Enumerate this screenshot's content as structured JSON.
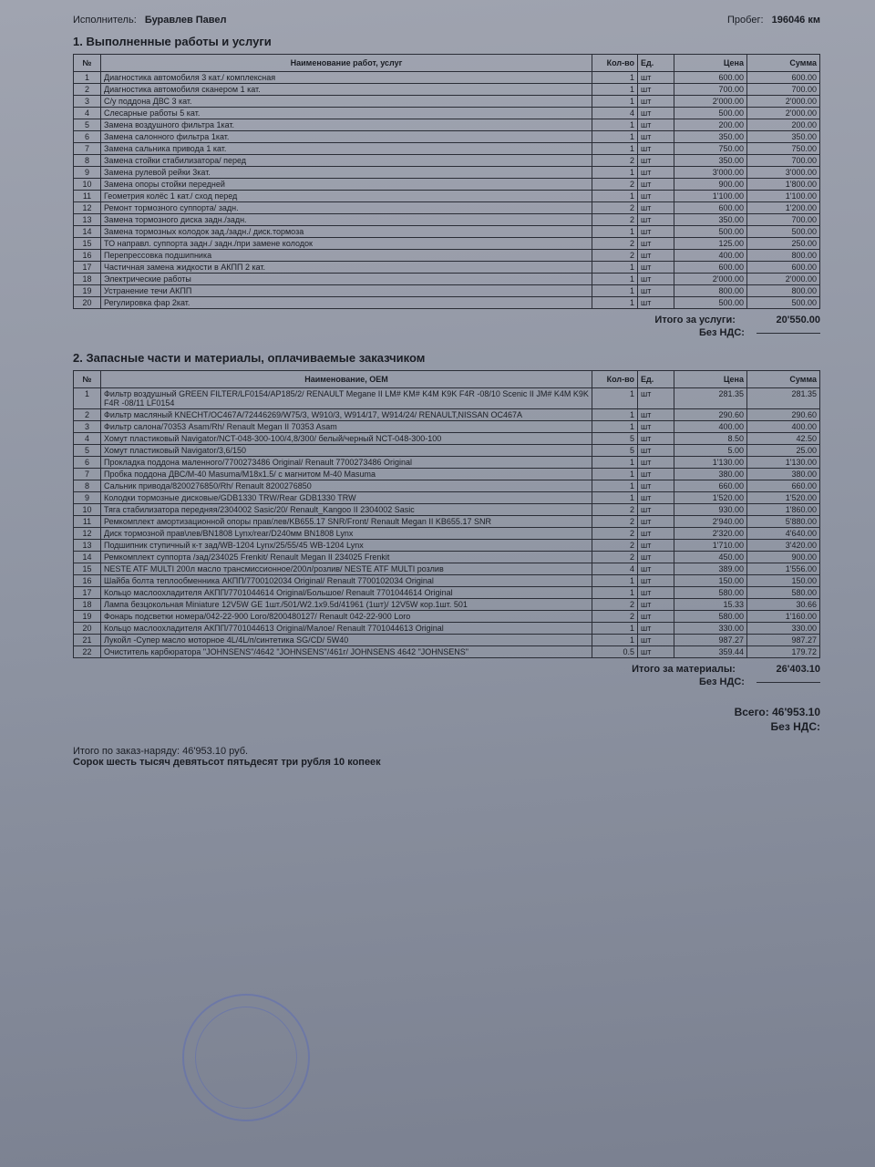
{
  "header": {
    "executor_label": "Исполнитель:",
    "executor_value": "Буравлев Павел",
    "mileage_label": "Пробег:",
    "mileage_value": "196046 км"
  },
  "section1": {
    "title": "1. Выполненные работы и услуги",
    "columns": {
      "num": "№",
      "name": "Наименование работ, услуг",
      "qty": "Кол-во",
      "unit": "Ед.",
      "price": "Цена",
      "sum": "Сумма"
    },
    "rows": [
      {
        "n": "1",
        "name": "Диагностика автомобиля 3 кат./ комплексная",
        "q": "1",
        "u": "шт",
        "p": "600.00",
        "s": "600.00"
      },
      {
        "n": "2",
        "name": "Диагностика автомобиля сканером 1 кат.",
        "q": "1",
        "u": "шт",
        "p": "700.00",
        "s": "700.00"
      },
      {
        "n": "3",
        "name": "С/у поддона ДВС 3 кат.",
        "q": "1",
        "u": "шт",
        "p": "2'000.00",
        "s": "2'000.00"
      },
      {
        "n": "4",
        "name": "Слесарные работы 5 кат.",
        "q": "4",
        "u": "шт",
        "p": "500.00",
        "s": "2'000.00"
      },
      {
        "n": "5",
        "name": "Замена воздушного фильтра 1кат.",
        "q": "1",
        "u": "шт",
        "p": "200.00",
        "s": "200.00"
      },
      {
        "n": "6",
        "name": "Замена салонного фильтра 1кат.",
        "q": "1",
        "u": "шт",
        "p": "350.00",
        "s": "350.00"
      },
      {
        "n": "7",
        "name": "Замена сальника привода 1 кат.",
        "q": "1",
        "u": "шт",
        "p": "750.00",
        "s": "750.00"
      },
      {
        "n": "8",
        "name": "Замена стойки стабилизатора/ перед",
        "q": "2",
        "u": "шт",
        "p": "350.00",
        "s": "700.00"
      },
      {
        "n": "9",
        "name": "Замена рулевой рейки 3кат.",
        "q": "1",
        "u": "шт",
        "p": "3'000.00",
        "s": "3'000.00"
      },
      {
        "n": "10",
        "name": "Замена опоры стойки передней",
        "q": "2",
        "u": "шт",
        "p": "900.00",
        "s": "1'800.00"
      },
      {
        "n": "11",
        "name": "Геометрия колёс 1 кат./ сход перед",
        "q": "1",
        "u": "шт",
        "p": "1'100.00",
        "s": "1'100.00"
      },
      {
        "n": "12",
        "name": "Ремонт тормозного суппорта/ задн.",
        "q": "2",
        "u": "шт",
        "p": "600.00",
        "s": "1'200.00"
      },
      {
        "n": "13",
        "name": "Замена тормозного диска задн./задн.",
        "q": "2",
        "u": "шт",
        "p": "350.00",
        "s": "700.00"
      },
      {
        "n": "14",
        "name": "Замена тормозных колодок зад./задн./ диск.тормоза",
        "q": "1",
        "u": "шт",
        "p": "500.00",
        "s": "500.00"
      },
      {
        "n": "15",
        "name": "ТО направл. суппорта задн./ задн./при замене колодок",
        "q": "2",
        "u": "шт",
        "p": "125.00",
        "s": "250.00"
      },
      {
        "n": "16",
        "name": "Перепрессовка подшипника",
        "q": "2",
        "u": "шт",
        "p": "400.00",
        "s": "800.00"
      },
      {
        "n": "17",
        "name": "Частичная замена жидкости в АКПП 2 кат.",
        "q": "1",
        "u": "шт",
        "p": "600.00",
        "s": "600.00"
      },
      {
        "n": "18",
        "name": "Электрические работы",
        "q": "1",
        "u": "шт",
        "p": "2'000.00",
        "s": "2'000.00"
      },
      {
        "n": "19",
        "name": "Устранение течи АКПП",
        "q": "1",
        "u": "шт",
        "p": "800.00",
        "s": "800.00"
      },
      {
        "n": "20",
        "name": "Регулировка фар 2кат.",
        "q": "1",
        "u": "шт",
        "p": "500.00",
        "s": "500.00"
      }
    ],
    "total_label": "Итого за услуги:",
    "total_value": "20'550.00",
    "vat_label": "Без НДС:"
  },
  "section2": {
    "title": "2. Запасные части и материалы, оплачиваемые заказчиком",
    "columns": {
      "num": "№",
      "name": "Наименование, OEM",
      "qty": "Кол-во",
      "unit": "Ед.",
      "price": "Цена",
      "sum": "Сумма"
    },
    "rows": [
      {
        "n": "1",
        "name": "Фильтр воздушный GREEN FILTER/LF0154/AP185/2/ RENAULT Megane II LM# KM# K4M K9K F4R -08/10 Scenic II JM# K4M K9K F4R -08/11 LF0154",
        "q": "1",
        "u": "шт",
        "p": "281.35",
        "s": "281.35"
      },
      {
        "n": "2",
        "name": "Фильтр масляный KNECHT/OC467A/72446269/W75/3, W910/3, W914/17, W914/24/ RENAULT,NISSAN OC467A",
        "q": "1",
        "u": "шт",
        "p": "290.60",
        "s": "290.60"
      },
      {
        "n": "3",
        "name": "Фильтр салона/70353 Asam/Rh/ Renault Megan II 70353 Asam",
        "q": "1",
        "u": "шт",
        "p": "400.00",
        "s": "400.00"
      },
      {
        "n": "4",
        "name": "Хомут пластиковый Navigator/NCT-048-300-100/4,8/300/ белый/черный NCT-048-300-100",
        "q": "5",
        "u": "шт",
        "p": "8.50",
        "s": "42.50"
      },
      {
        "n": "5",
        "name": "Хомут пластиковый Navigator/3,6/150",
        "q": "5",
        "u": "шт",
        "p": "5.00",
        "s": "25.00"
      },
      {
        "n": "6",
        "name": "Прокладка поддона маленного/7700273486 Original/ Renault 7700273486 Original",
        "q": "1",
        "u": "шт",
        "p": "1'130.00",
        "s": "1'130.00"
      },
      {
        "n": "7",
        "name": "Пробка поддона ДВС/M-40 Masuma/M18x1.5/ с магнитом M-40 Masuma",
        "q": "1",
        "u": "шт",
        "p": "380.00",
        "s": "380.00"
      },
      {
        "n": "8",
        "name": "Сальник привода/8200276850/Rh/ Renault 8200276850",
        "q": "1",
        "u": "шт",
        "p": "660.00",
        "s": "660.00"
      },
      {
        "n": "9",
        "name": "Колодки тормозные дисковые/GDB1330 TRW/Rear GDB1330 TRW",
        "q": "1",
        "u": "шт",
        "p": "1'520.00",
        "s": "1'520.00"
      },
      {
        "n": "10",
        "name": "Тяга стабилизатора передняя/2304002 Sasic/20/ Renault_Kangoo II 2304002 Sasic",
        "q": "2",
        "u": "шт",
        "p": "930.00",
        "s": "1'860.00"
      },
      {
        "n": "11",
        "name": "Ремкомплект амортизационной опоры прав/лев/KB655.17 SNR/Front/ Renault Megan II KB655.17 SNR",
        "q": "2",
        "u": "шт",
        "p": "2'940.00",
        "s": "5'880.00"
      },
      {
        "n": "12",
        "name": "Диск тормозной прав\\лев/BN1808 Lynx/rear/D240мм BN1808 Lynx",
        "q": "2",
        "u": "шт",
        "p": "2'320.00",
        "s": "4'640.00"
      },
      {
        "n": "13",
        "name": "Подшипник ступичный к-т зад/WB-1204 Lynx/25/55/45 WB-1204 Lynx",
        "q": "2",
        "u": "шт",
        "p": "1'710.00",
        "s": "3'420.00"
      },
      {
        "n": "14",
        "name": "Ремкомплект суппорта /зад/234025 Frenkit/ Renault Megan II 234025 Frenkit",
        "q": "2",
        "u": "шт",
        "p": "450.00",
        "s": "900.00"
      },
      {
        "n": "15",
        "name": "NESTE ATF MULTI 200л масло трансмиссионное/200л/розлив/ NESTE ATF MULTI розлив",
        "q": "4",
        "u": "шт",
        "p": "389.00",
        "s": "1'556.00"
      },
      {
        "n": "16",
        "name": "Шайба болта теплообменника АКПП/7700102034 Original/ Renault 7700102034 Original",
        "q": "1",
        "u": "шт",
        "p": "150.00",
        "s": "150.00"
      },
      {
        "n": "17",
        "name": "Кольцо маслоохладителя АКПП/7701044614 Original/Большое/ Renault 7701044614 Original",
        "q": "1",
        "u": "шт",
        "p": "580.00",
        "s": "580.00"
      },
      {
        "n": "18",
        "name": "Лампа безцокольная Miniature 12V5W GE 1шт./501/W2.1x9.5d/41961 (1шт)/ 12V5W кор.1шт. 501",
        "q": "2",
        "u": "шт",
        "p": "15.33",
        "s": "30.66"
      },
      {
        "n": "19",
        "name": "Фонарь подсветки номера/042-22-900 Loro/8200480127/ Renault 042-22-900 Loro",
        "q": "2",
        "u": "шт",
        "p": "580.00",
        "s": "1'160.00"
      },
      {
        "n": "20",
        "name": "Кольцо маслоохладителя АКПП/7701044613 Original/Малое/ Renault 7701044613 Original",
        "q": "1",
        "u": "шт",
        "p": "330.00",
        "s": "330.00"
      },
      {
        "n": "21",
        "name": "Лукойл -Супер масло моторное 4L/4L/п/синтетика SG/CD/ 5W40",
        "q": "1",
        "u": "шт",
        "p": "987.27",
        "s": "987.27"
      },
      {
        "n": "22",
        "name": "Очиститель карбюратора \"JOHNSENS\"/4642 \"JOHNSENS\"/461г/ JOHNSENS 4642 \"JOHNSENS\"",
        "q": "0.5",
        "u": "шт",
        "p": "359.44",
        "s": "179.72"
      }
    ],
    "total_label": "Итого за материалы:",
    "total_value": "26'403.10",
    "vat_label": "Без НДС:"
  },
  "grand": {
    "total_label": "Всего:",
    "total_value": "46'953.10",
    "vat_label": "Без НДС:"
  },
  "footer": {
    "order_total": "Итого по заказ-наряду: 46'953.10 руб.",
    "words": "Сорок шесть тысяч девятьсот пятьдесят три рубля 10 копеек"
  }
}
